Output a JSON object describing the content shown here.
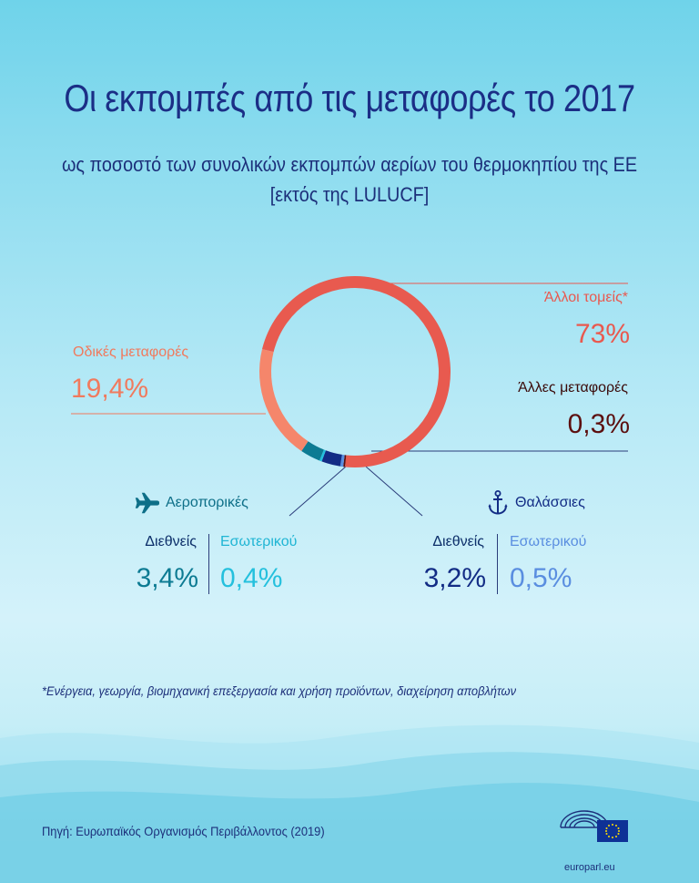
{
  "title": "Οι εκπομπές από τις μεταφορές το 2017",
  "subtitle_line1": "ως ποσοστό των συνολικών εκπομπών αερίων του θερμοκηπίου της ΕΕ",
  "subtitle_line2": "[εκτός της LULUCF]",
  "chart_data": {
    "type": "pie",
    "style": "donut",
    "unit": "%",
    "slices": [
      {
        "label": "Άλλοι τομείς*",
        "value": 73,
        "value_label": "73%",
        "color": "#e85a4f"
      },
      {
        "label": "Άλλες μεταφορές",
        "value": 0.3,
        "value_label": "0,3%",
        "color": "#5c0f0f"
      },
      {
        "label": "Θαλάσσιες – Εσωτερικού",
        "value": 0.5,
        "value_label": "0,5%",
        "color": "#5a8ee0"
      },
      {
        "label": "Θαλάσσιες – Διεθνείς",
        "value": 3.2,
        "value_label": "3,2%",
        "color": "#122c85"
      },
      {
        "label": "Αεροπορικές – Εσωτερικού",
        "value": 0.4,
        "value_label": "0,4%",
        "color": "#24c0dd"
      },
      {
        "label": "Αεροπορικές – Διεθνείς",
        "value": 3.4,
        "value_label": "3,4%",
        "color": "#0d7b93"
      },
      {
        "label": "Οδικές μεταφορές",
        "value": 19.4,
        "value_label": "19,4%",
        "color": "#f5866b"
      }
    ]
  },
  "labels": {
    "other_sectors": {
      "name": "Άλλοι τομείς*",
      "value": "73%"
    },
    "other_transport": {
      "name": "Άλλες μεταφορές",
      "value": "0,3%"
    },
    "road": {
      "name": "Οδικές μεταφορές",
      "value": "19,4%"
    },
    "aviation": {
      "group": "Αεροπορικές",
      "intl_name": "Διεθνείς",
      "intl_value": "3,4%",
      "dom_name": "Εσωτερικού",
      "dom_value": "0,4%"
    },
    "maritime": {
      "group": "Θαλάσσιες",
      "intl_name": "Διεθνείς",
      "intl_value": "3,2%",
      "dom_name": "Εσωτερικού",
      "dom_value": "0,5%"
    }
  },
  "icons": {
    "aviation": "airplane-icon",
    "maritime": "anchor-icon"
  },
  "colors": {
    "title": "#1b2e86",
    "leader_line": "#2a3c7a"
  },
  "footnote": "*Ενέργεια, γεωργία, βιομηχανική επεξεργασία και χρήση προϊόντων, διαχείρηση αποβλήτων",
  "source": "Πηγή: Ευρωπαϊκός Οργανισμός Περιβάλλοντος (2019)",
  "logo_caption": "europarl.eu"
}
